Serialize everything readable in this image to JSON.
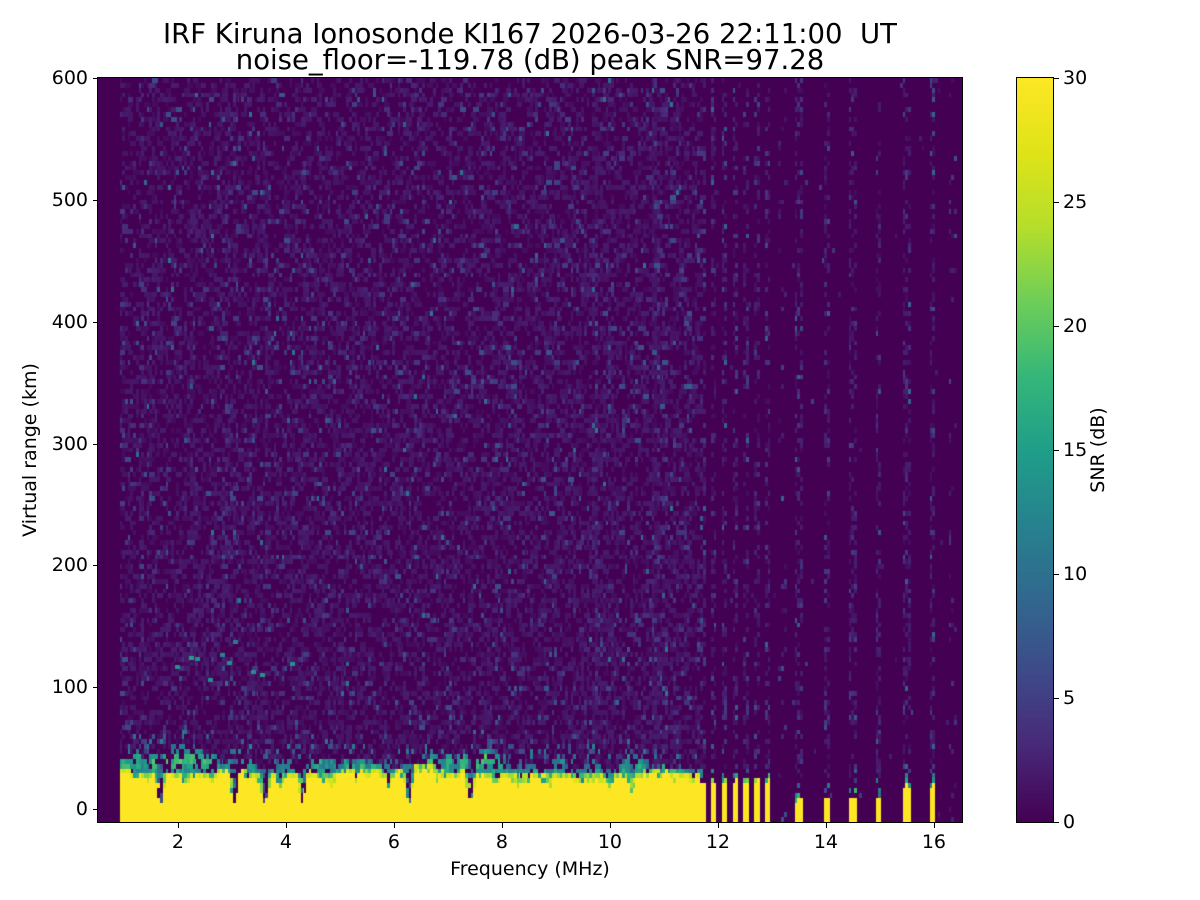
{
  "chart_data": {
    "type": "heatmap",
    "title": "IRF Kiruna Ionosonde KI167 2026-03-26 22:11:00  UT",
    "subtitle": "noise_floor=-119.78 (dB) peak SNR=97.28",
    "xlabel": "Frequency (MHz)",
    "ylabel": "Virtual range (km)",
    "xlim": [
      0.52,
      16.52
    ],
    "ylim": [
      -10.5,
      600
    ],
    "x_ticks": [
      2,
      4,
      6,
      8,
      10,
      12,
      14,
      16
    ],
    "y_ticks": [
      0,
      100,
      200,
      300,
      400,
      500,
      600
    ],
    "colorbar": {
      "label": "SNR (dB)",
      "min": 0,
      "max": 30,
      "ticks": [
        0,
        5,
        10,
        15,
        20,
        25,
        30
      ],
      "colormap": "viridis",
      "stops": [
        "#440154",
        "#482878",
        "#3e4a89",
        "#31688e",
        "#26828e",
        "#1f9e89",
        "#35b779",
        "#6ece58",
        "#b5de2b",
        "#dfe318",
        "#fde725"
      ]
    },
    "noise_floor_db": -119.78,
    "peak_snr_db": 97.28,
    "data_freq_range_mhz": [
      0.92,
      16.45
    ],
    "freq_bin_mhz": 0.05,
    "range_bin_km": 4,
    "ground_echo": {
      "continuous_band_mhz": [
        0.92,
        11.66
      ],
      "saturated_top_km": 26,
      "cap_top_km": 44,
      "deep_notch_freqs_mhz": [
        1.68,
        3.05,
        3.62,
        4.3,
        6.28,
        7.42
      ],
      "moderate_notches_mhz_km": [
        [
          2.15,
          6
        ],
        [
          2.63,
          6
        ],
        [
          3.3,
          7
        ],
        [
          3.9,
          6
        ],
        [
          4.85,
          6
        ],
        [
          5.3,
          5
        ],
        [
          5.9,
          6
        ],
        [
          6.8,
          7
        ],
        [
          7.9,
          6
        ],
        [
          8.3,
          5
        ],
        [
          8.9,
          6
        ],
        [
          9.4,
          5
        ],
        [
          10.0,
          6
        ],
        [
          10.4,
          12
        ],
        [
          10.9,
          12
        ],
        [
          11.2,
          7
        ]
      ],
      "cluster_column_freqs_mhz": [
        11.72,
        11.92,
        12.12,
        12.32,
        12.52,
        12.72,
        12.92
      ],
      "isolated_column_freqs_mhz": [
        13.5,
        14.03,
        14.5,
        14.98,
        15.5,
        15.98
      ],
      "isolated_column_top_km": [
        6,
        7,
        9,
        8,
        17,
        18
      ],
      "faint_stripe_freqs_mhz": [
        13.2,
        16.35
      ],
      "noise_boost_stripe_freqs_mhz": [
        9.72,
        10.85
      ]
    },
    "second_hop_trace": {
      "freq_range_mhz": [
        1.9,
        4.1
      ],
      "range_km": [
        103,
        142
      ],
      "dashes": [
        [
          2.2,
          126
        ],
        [
          2.32,
          125
        ],
        [
          2.78,
          128
        ],
        [
          2.9,
          122
        ],
        [
          3.02,
          139
        ],
        [
          3.35,
          114
        ],
        [
          3.52,
          112
        ],
        [
          4.07,
          121
        ],
        [
          2.55,
          108
        ],
        [
          1.95,
          118
        ]
      ]
    },
    "noise_speckle": {
      "density": 0.37,
      "typical_db": [
        1,
        3
      ],
      "max_db": 11
    },
    "seed": 167
  }
}
